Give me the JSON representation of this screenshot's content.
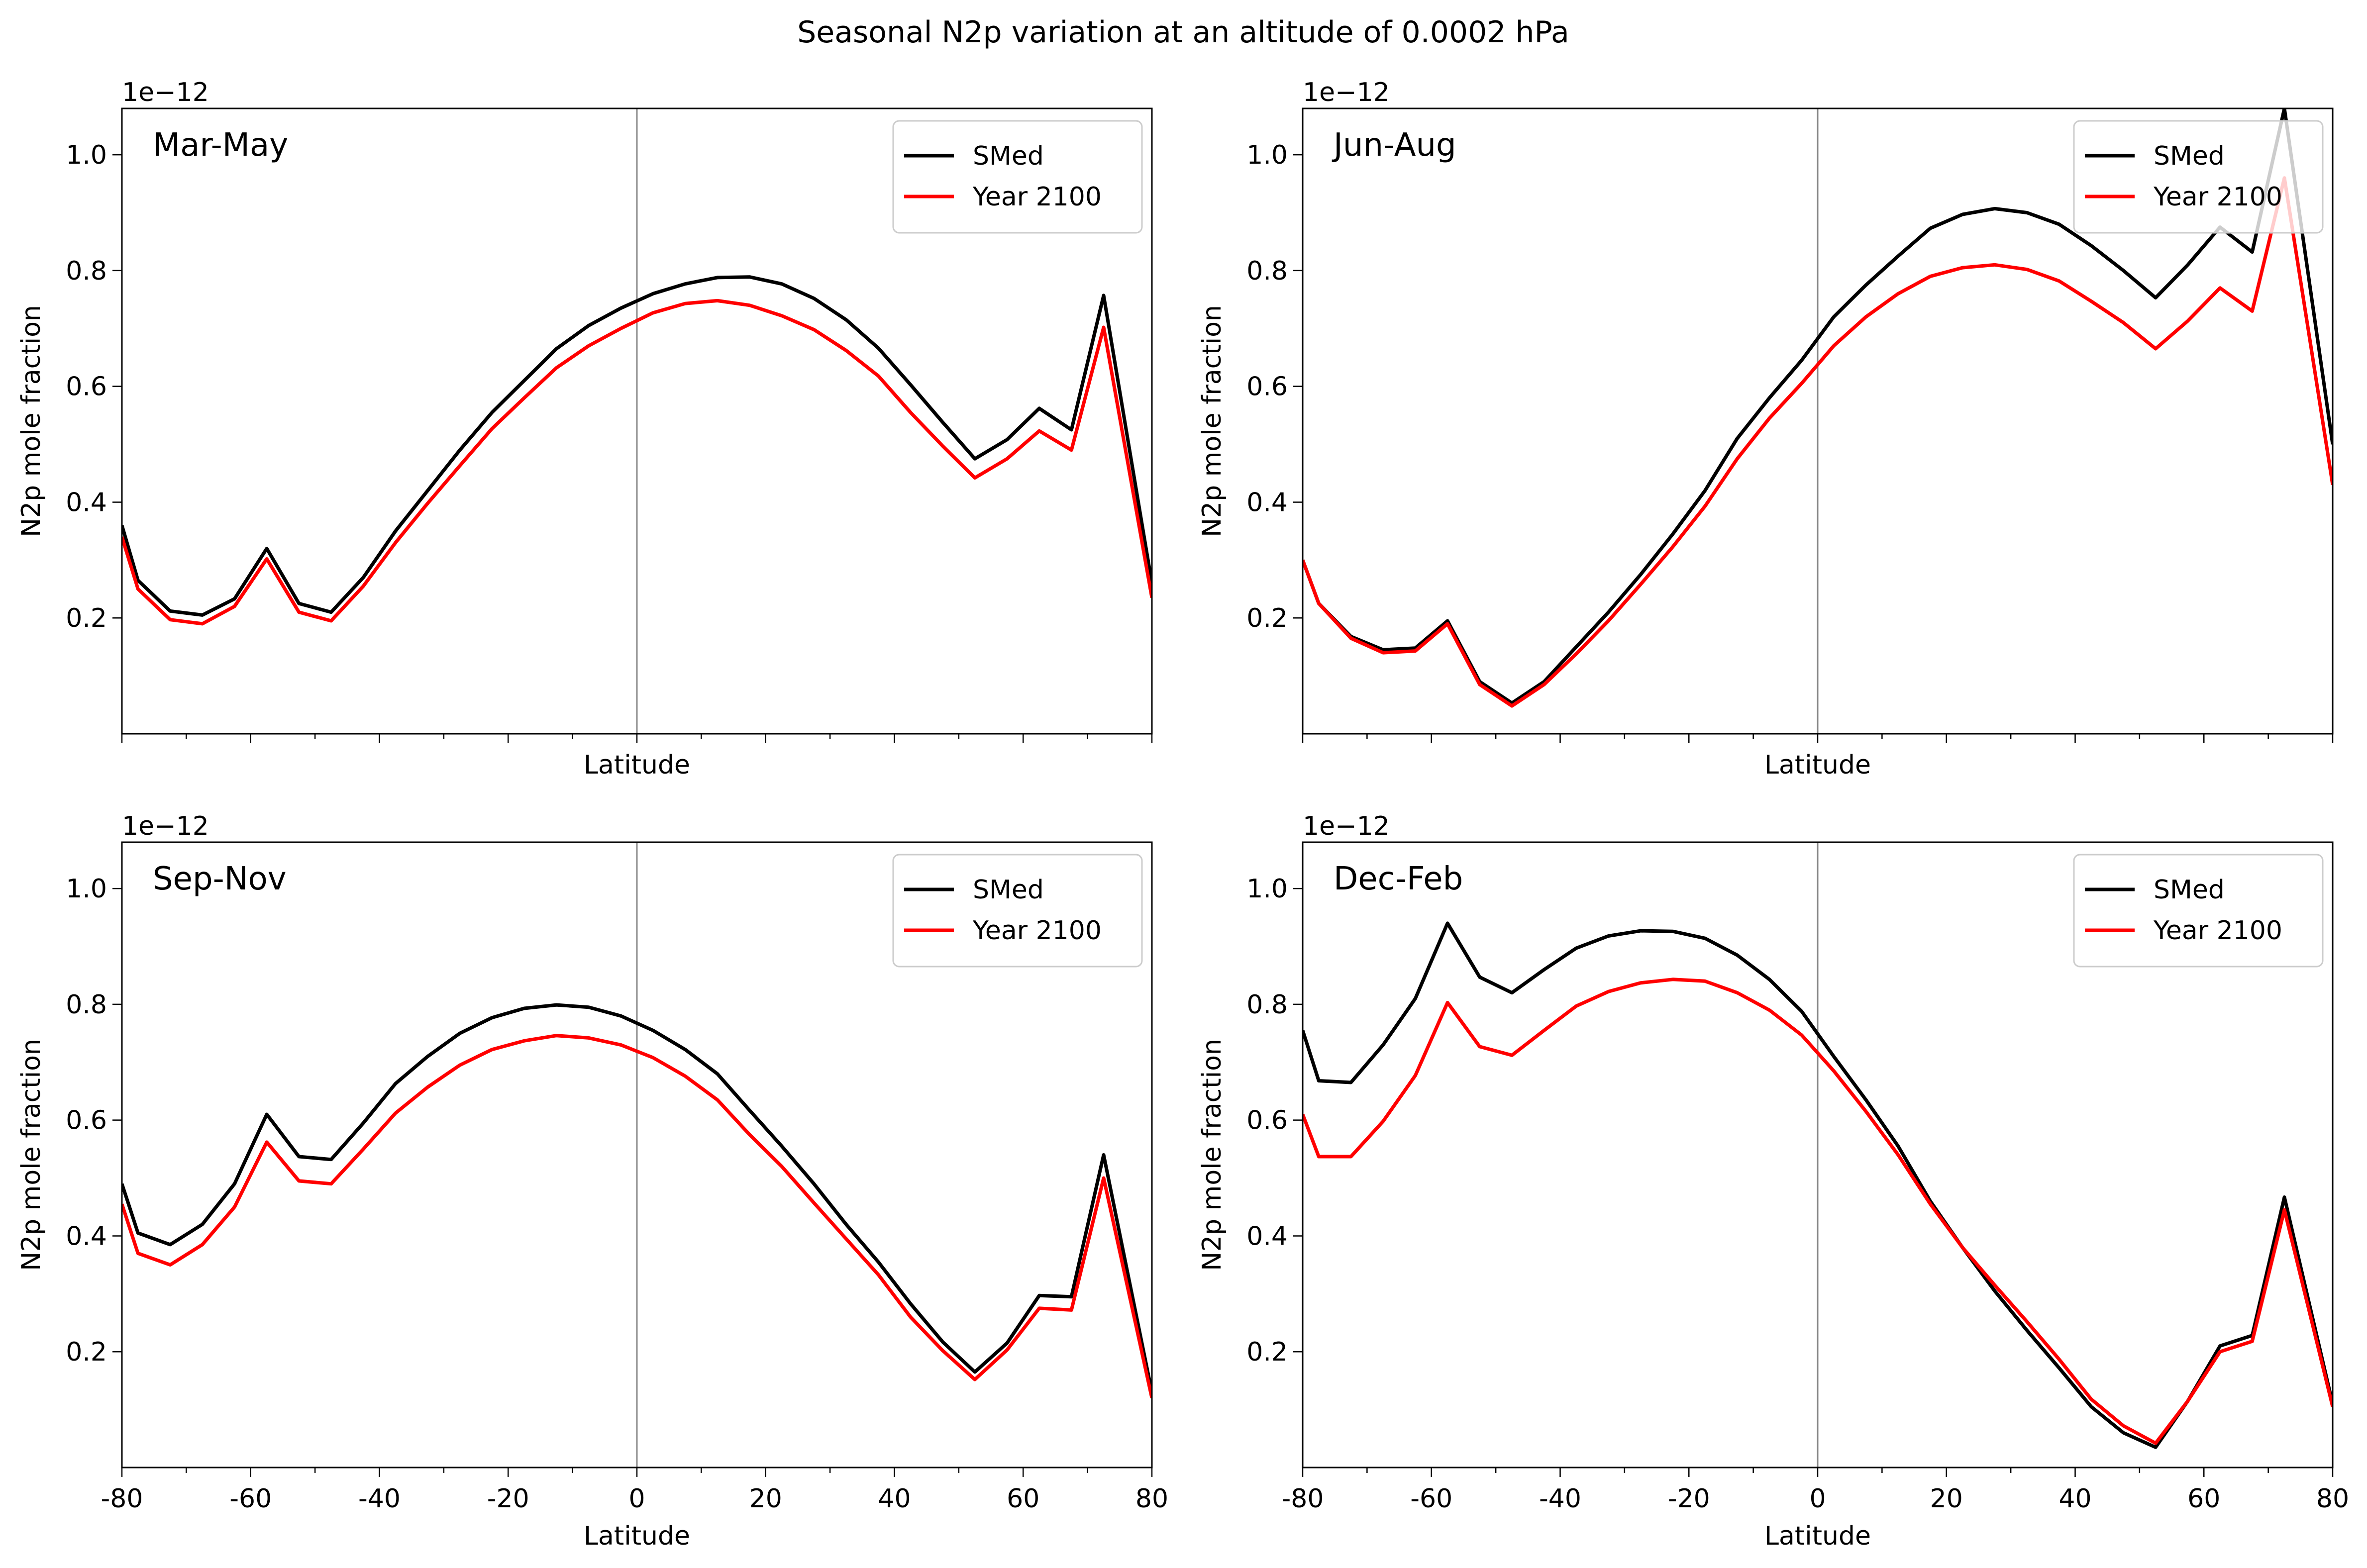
{
  "figure": {
    "title": "Seasonal N2p variation at an altitude of 0.0002 hPa"
  },
  "chart_data": [
    {
      "type": "line",
      "panel_title": "Mar-May",
      "xlabel": "Latitude",
      "ylabel": "N2p mole fraction",
      "y_offset_label": "1e−12",
      "xlim": [
        -80,
        80
      ],
      "ylim": [
        0.0,
        1.08
      ],
      "xticks": [
        -80,
        -60,
        -40,
        -20,
        0,
        20,
        40,
        60,
        80
      ],
      "xtick_labels": [],
      "yticks": [
        0.2,
        0.4,
        0.6,
        0.8,
        1.0
      ],
      "ytick_labels": [
        "0.2",
        "0.4",
        "0.6",
        "0.8",
        "1.0"
      ],
      "vline_x": 0,
      "legend_position": "upper right",
      "x": [
        -80,
        -77.5,
        -72.5,
        -67.5,
        -62.5,
        -57.5,
        -52.5,
        -47.5,
        -42.5,
        -37.5,
        -32.5,
        -27.5,
        -22.5,
        -17.5,
        -12.5,
        -7.5,
        -2.5,
        2.5,
        7.5,
        12.5,
        17.5,
        22.5,
        27.5,
        32.5,
        37.5,
        42.5,
        47.5,
        52.5,
        57.5,
        62.5,
        67.5,
        72.5,
        80
      ],
      "series": [
        {
          "name": "SMed",
          "color": "#000000",
          "values": [
            0.36,
            0.265,
            0.212,
            0.205,
            0.233,
            0.32,
            0.225,
            0.21,
            0.27,
            0.35,
            0.42,
            0.49,
            0.555,
            0.61,
            0.665,
            0.705,
            0.735,
            0.76,
            0.777,
            0.788,
            0.789,
            0.777,
            0.752,
            0.715,
            0.666,
            0.603,
            0.538,
            0.475,
            0.508,
            0.562,
            0.525,
            0.757,
            0.26
          ]
        },
        {
          "name": "Year 2100",
          "color": "#ff0000",
          "values": [
            0.34,
            0.25,
            0.197,
            0.19,
            0.22,
            0.302,
            0.21,
            0.195,
            0.255,
            0.33,
            0.398,
            0.463,
            0.527,
            0.58,
            0.632,
            0.67,
            0.7,
            0.727,
            0.743,
            0.748,
            0.74,
            0.722,
            0.698,
            0.662,
            0.618,
            0.555,
            0.497,
            0.442,
            0.475,
            0.523,
            0.49,
            0.702,
            0.235
          ]
        }
      ]
    },
    {
      "type": "line",
      "panel_title": "Jun-Aug",
      "xlabel": "Latitude",
      "ylabel": "N2p mole fraction",
      "y_offset_label": "1e−12",
      "xlim": [
        -80,
        80
      ],
      "ylim": [
        0.0,
        1.08
      ],
      "xticks": [
        -80,
        -60,
        -40,
        -20,
        0,
        20,
        40,
        60,
        80
      ],
      "xtick_labels": [],
      "yticks": [
        0.2,
        0.4,
        0.6,
        0.8,
        1.0
      ],
      "ytick_labels": [
        "0.2",
        "0.4",
        "0.6",
        "0.8",
        "1.0"
      ],
      "vline_x": 0,
      "legend_position": "upper right",
      "x": [
        -80,
        -77.5,
        -72.5,
        -67.5,
        -62.5,
        -57.5,
        -52.5,
        -47.5,
        -42.5,
        -37.5,
        -32.5,
        -27.5,
        -22.5,
        -17.5,
        -12.5,
        -7.5,
        -2.5,
        2.5,
        7.5,
        12.5,
        17.5,
        22.5,
        27.5,
        32.5,
        37.5,
        42.5,
        47.5,
        52.5,
        57.5,
        62.5,
        67.5,
        72.5,
        80
      ],
      "series": [
        {
          "name": "SMed",
          "color": "#000000",
          "values": [
            0.3,
            0.225,
            0.168,
            0.145,
            0.148,
            0.195,
            0.09,
            0.053,
            0.09,
            0.15,
            0.21,
            0.275,
            0.345,
            0.42,
            0.51,
            0.58,
            0.645,
            0.72,
            0.775,
            0.825,
            0.873,
            0.897,
            0.907,
            0.9,
            0.88,
            0.843,
            0.8,
            0.753,
            0.81,
            0.875,
            0.832,
            1.08,
            0.5
          ]
        },
        {
          "name": "Year 2100",
          "color": "#ff0000",
          "values": [
            0.3,
            0.225,
            0.165,
            0.14,
            0.143,
            0.19,
            0.085,
            0.048,
            0.085,
            0.138,
            0.195,
            0.258,
            0.323,
            0.393,
            0.475,
            0.545,
            0.605,
            0.67,
            0.72,
            0.76,
            0.79,
            0.805,
            0.81,
            0.802,
            0.782,
            0.747,
            0.71,
            0.665,
            0.713,
            0.77,
            0.73,
            0.96,
            0.43
          ]
        }
      ]
    },
    {
      "type": "line",
      "panel_title": "Sep-Nov",
      "xlabel": "Latitude",
      "ylabel": "N2p mole fraction",
      "y_offset_label": "1e−12",
      "xlim": [
        -80,
        80
      ],
      "ylim": [
        0.0,
        1.08
      ],
      "xticks": [
        -80,
        -60,
        -40,
        -20,
        0,
        20,
        40,
        60,
        80
      ],
      "xtick_labels": [
        "-80",
        "-60",
        "-40",
        "-20",
        "0",
        "20",
        "40",
        "60",
        "80"
      ],
      "yticks": [
        0.2,
        0.4,
        0.6,
        0.8,
        1.0
      ],
      "ytick_labels": [
        "0.2",
        "0.4",
        "0.6",
        "0.8",
        "1.0"
      ],
      "vline_x": 0,
      "legend_position": "upper right",
      "x": [
        -80,
        -77.5,
        -72.5,
        -67.5,
        -62.5,
        -57.5,
        -52.5,
        -47.5,
        -42.5,
        -37.5,
        -32.5,
        -27.5,
        -22.5,
        -17.5,
        -12.5,
        -7.5,
        -2.5,
        2.5,
        7.5,
        12.5,
        17.5,
        22.5,
        27.5,
        32.5,
        37.5,
        42.5,
        47.5,
        52.5,
        57.5,
        62.5,
        67.5,
        72.5,
        80
      ],
      "series": [
        {
          "name": "SMed",
          "color": "#000000",
          "values": [
            0.49,
            0.405,
            0.385,
            0.42,
            0.49,
            0.61,
            0.537,
            0.532,
            0.595,
            0.663,
            0.71,
            0.75,
            0.777,
            0.793,
            0.799,
            0.795,
            0.78,
            0.755,
            0.722,
            0.68,
            0.617,
            0.555,
            0.49,
            0.42,
            0.355,
            0.283,
            0.217,
            0.165,
            0.215,
            0.297,
            0.295,
            0.54,
            0.13
          ]
        },
        {
          "name": "Year 2100",
          "color": "#ff0000",
          "values": [
            0.455,
            0.37,
            0.35,
            0.385,
            0.45,
            0.562,
            0.495,
            0.49,
            0.55,
            0.612,
            0.657,
            0.695,
            0.722,
            0.737,
            0.746,
            0.742,
            0.73,
            0.708,
            0.676,
            0.635,
            0.575,
            0.52,
            0.457,
            0.395,
            0.333,
            0.26,
            0.202,
            0.152,
            0.203,
            0.275,
            0.272,
            0.5,
            0.12
          ]
        }
      ]
    },
    {
      "type": "line",
      "panel_title": "Dec-Feb",
      "xlabel": "Latitude",
      "ylabel": "N2p mole fraction",
      "y_offset_label": "1e−12",
      "xlim": [
        -80,
        80
      ],
      "ylim": [
        0.0,
        1.08
      ],
      "xticks": [
        -80,
        -60,
        -40,
        -20,
        0,
        20,
        40,
        60,
        80
      ],
      "xtick_labels": [
        "-80",
        "-60",
        "-40",
        "-20",
        "0",
        "20",
        "40",
        "60",
        "80"
      ],
      "yticks": [
        0.2,
        0.4,
        0.6,
        0.8,
        1.0
      ],
      "ytick_labels": [
        "0.2",
        "0.4",
        "0.6",
        "0.8",
        "1.0"
      ],
      "vline_x": 0,
      "legend_position": "upper right",
      "x": [
        -80,
        -77.5,
        -72.5,
        -67.5,
        -62.5,
        -57.5,
        -52.5,
        -47.5,
        -42.5,
        -37.5,
        -32.5,
        -27.5,
        -22.5,
        -17.5,
        -12.5,
        -7.5,
        -2.5,
        2.5,
        7.5,
        12.5,
        17.5,
        22.5,
        27.5,
        32.5,
        37.5,
        42.5,
        47.5,
        52.5,
        57.5,
        62.5,
        67.5,
        72.5,
        80
      ],
      "series": [
        {
          "name": "SMed",
          "color": "#000000",
          "values": [
            0.755,
            0.668,
            0.665,
            0.73,
            0.81,
            0.94,
            0.847,
            0.82,
            0.86,
            0.897,
            0.918,
            0.927,
            0.926,
            0.914,
            0.885,
            0.843,
            0.788,
            0.71,
            0.635,
            0.555,
            0.46,
            0.38,
            0.305,
            0.237,
            0.172,
            0.105,
            0.06,
            0.035,
            0.115,
            0.21,
            0.228,
            0.467,
            0.11
          ]
        },
        {
          "name": "Year 2100",
          "color": "#ff0000",
          "values": [
            0.61,
            0.537,
            0.537,
            0.598,
            0.677,
            0.803,
            0.727,
            0.712,
            0.755,
            0.797,
            0.822,
            0.837,
            0.843,
            0.84,
            0.82,
            0.79,
            0.747,
            0.685,
            0.615,
            0.54,
            0.455,
            0.38,
            0.315,
            0.252,
            0.187,
            0.118,
            0.072,
            0.042,
            0.115,
            0.2,
            0.218,
            0.445,
            0.105
          ]
        }
      ]
    }
  ]
}
